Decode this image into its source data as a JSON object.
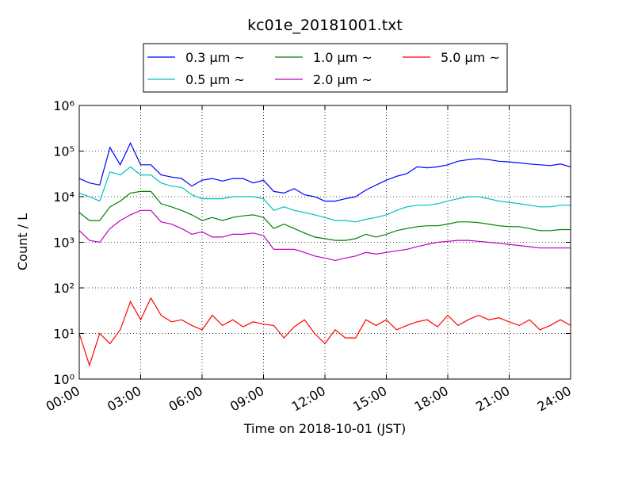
{
  "chart_data": {
    "type": "line",
    "title": "kc01e_20181001.txt",
    "x_label": "Time on 2018-10-01 (JST)",
    "y_label": "Count / L",
    "log_scale_y": true,
    "grid": true,
    "legend_position": "top",
    "x": [
      0,
      0.5,
      1,
      1.5,
      2,
      2.5,
      3,
      3.5,
      4,
      4.5,
      5,
      5.5,
      6,
      6.5,
      7,
      7.5,
      8,
      8.5,
      9,
      9.5,
      10,
      10.5,
      11,
      11.5,
      12,
      12.5,
      13,
      13.5,
      14,
      14.5,
      15,
      15.5,
      16,
      16.5,
      17,
      17.5,
      18,
      18.5,
      19,
      19.5,
      20,
      20.5,
      21,
      21.5,
      22,
      22.5,
      23,
      23.5,
      24
    ],
    "xlim": [
      0,
      24
    ],
    "xticks": [
      {
        "value": 0,
        "label": "00:00"
      },
      {
        "value": 3,
        "label": "03:00"
      },
      {
        "value": 6,
        "label": "06:00"
      },
      {
        "value": 9,
        "label": "09:00"
      },
      {
        "value": 12,
        "label": "12:00"
      },
      {
        "value": 15,
        "label": "15:00"
      },
      {
        "value": 18,
        "label": "18:00"
      },
      {
        "value": 21,
        "label": "21:00"
      },
      {
        "value": 24,
        "label": "24:00"
      }
    ],
    "ylim": [
      1,
      1000000
    ],
    "yticks": [
      {
        "value": 1,
        "label": "10⁰"
      },
      {
        "value": 10,
        "label": "10¹"
      },
      {
        "value": 100,
        "label": "10²"
      },
      {
        "value": 1000,
        "label": "10³"
      },
      {
        "value": 10000,
        "label": "10⁴"
      },
      {
        "value": 100000,
        "label": "10⁵"
      },
      {
        "value": 1000000,
        "label": "10⁶"
      }
    ],
    "series": [
      {
        "name": "0.3 μm ~",
        "color": "#0000ff",
        "values": [
          25000,
          20000,
          18000,
          120000,
          50000,
          150000,
          50000,
          50000,
          30000,
          27000,
          25000,
          17000,
          23000,
          25000,
          22000,
          25000,
          25000,
          20000,
          23000,
          13000,
          12000,
          15000,
          11000,
          10000,
          8000,
          8000,
          9000,
          10000,
          14000,
          18000,
          23000,
          28000,
          32000,
          45000,
          43000,
          45000,
          50000,
          60000,
          65000,
          68000,
          65000,
          60000,
          58000,
          55000,
          52000,
          50000,
          48000,
          52000,
          45000
        ]
      },
      {
        "name": "0.5 μm ~",
        "color": "#00bfbf",
        "values": [
          12000,
          10000,
          8000,
          35000,
          30000,
          45000,
          30000,
          30000,
          20000,
          17000,
          16000,
          11000,
          9000,
          9000,
          9000,
          10000,
          10000,
          10000,
          9000,
          5000,
          6000,
          5000,
          4500,
          4000,
          3500,
          3000,
          3000,
          2800,
          3200,
          3500,
          4000,
          5000,
          6000,
          6500,
          6500,
          7000,
          8000,
          9000,
          10000,
          10000,
          9000,
          8000,
          7500,
          7000,
          6500,
          6000,
          6000,
          6500,
          6500
        ]
      },
      {
        "name": "1.0 μm ~",
        "color": "#008000",
        "values": [
          4500,
          3000,
          3000,
          6000,
          8000,
          12000,
          13000,
          13000,
          7000,
          6000,
          5000,
          4000,
          3000,
          3500,
          3000,
          3500,
          3800,
          4000,
          3500,
          2000,
          2500,
          2000,
          1600,
          1300,
          1200,
          1100,
          1100,
          1200,
          1500,
          1300,
          1500,
          1800,
          2000,
          2200,
          2300,
          2300,
          2500,
          2800,
          2800,
          2700,
          2500,
          2300,
          2200,
          2200,
          2000,
          1800,
          1800,
          1900,
          1900
        ]
      },
      {
        "name": "2.0 μm ~",
        "color": "#bf00bf",
        "values": [
          1800,
          1100,
          1000,
          2000,
          3000,
          4000,
          5000,
          5000,
          2800,
          2500,
          2000,
          1500,
          1700,
          1300,
          1300,
          1500,
          1500,
          1600,
          1400,
          700,
          700,
          700,
          600,
          500,
          450,
          400,
          450,
          500,
          600,
          550,
          600,
          650,
          700,
          800,
          900,
          1000,
          1050,
          1100,
          1100,
          1050,
          1000,
          950,
          900,
          850,
          800,
          750,
          750,
          750,
          750
        ]
      },
      {
        "name": "5.0 μm ~",
        "color": "#ff0000",
        "values": [
          10,
          2,
          10,
          6,
          12,
          50,
          20,
          60,
          25,
          18,
          20,
          15,
          12,
          25,
          15,
          20,
          14,
          18,
          16,
          15,
          8,
          14,
          20,
          10,
          6,
          12,
          8,
          8,
          20,
          15,
          20,
          12,
          15,
          18,
          20,
          14,
          25,
          15,
          20,
          25,
          20,
          22,
          18,
          15,
          20,
          12,
          15,
          20,
          15
        ]
      }
    ]
  }
}
